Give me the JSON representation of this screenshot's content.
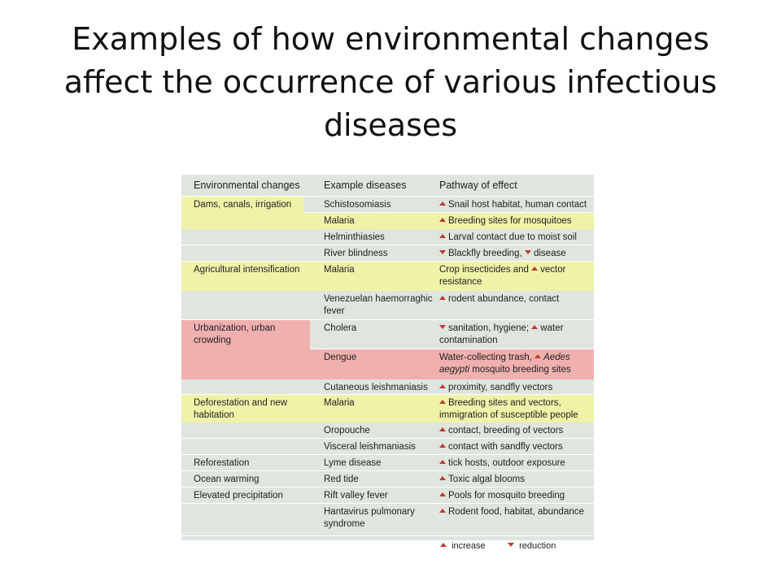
{
  "title": "Examples of how environmental changes affect the occurrence of various infectious diseases",
  "colors": {
    "table_bg": "#dfe5df",
    "yellow": "#eef3a8",
    "pink": "#f0b0ae",
    "arrow": "#c0392b"
  },
  "table": {
    "headers": [
      "Environmental changes",
      "Example diseases",
      "Pathway of effect"
    ],
    "rows": [
      {
        "env": "Dams, canals, irrigation",
        "disease": "Schistosomiasis",
        "pathway": [
          {
            "arrow": "up",
            "text": "Snail host habitat, human contact"
          }
        ]
      },
      {
        "env": "",
        "disease": "Malaria",
        "pathway": [
          {
            "arrow": "up",
            "text": "Breeding sites for mosquitoes"
          }
        ]
      },
      {
        "env": "",
        "disease": "Helminthiasies",
        "pathway": [
          {
            "arrow": "up",
            "text": "Larval contact due to moist soil"
          }
        ]
      },
      {
        "env": "",
        "disease": "River blindness",
        "pathway": [
          {
            "arrow": "down",
            "text": "Blackfly breeding, "
          },
          {
            "arrow": "down",
            "text": "disease"
          }
        ]
      },
      {
        "env": "Agricultural intensification",
        "disease": "Malaria",
        "pathway": [
          {
            "arrow": "",
            "text": "Crop insecticides and "
          },
          {
            "arrow": "up",
            "text": "vector resistance"
          }
        ]
      },
      {
        "env": "",
        "disease": "Venezuelan haemorraghic fever",
        "pathway": [
          {
            "arrow": "up",
            "text": "rodent abundance, contact"
          }
        ]
      },
      {
        "env": "Urbanization, urban crowding",
        "disease": "Cholera",
        "pathway": [
          {
            "arrow": "down",
            "text": "sanitation, hygiene; "
          },
          {
            "arrow": "up",
            "text": "water contamination"
          }
        ]
      },
      {
        "env": "",
        "disease": "Dengue",
        "pathway": [
          {
            "arrow": "",
            "text": "Water-collecting trash, "
          },
          {
            "arrow": "up",
            "text": "Aedes aegypti",
            "italic": true
          },
          {
            "arrow": "",
            "text": " mosquito breeding sites"
          }
        ]
      },
      {
        "env": "",
        "disease": "Cutaneous leishmaniasis",
        "pathway": [
          {
            "arrow": "up",
            "text": "proximity, sandfly vectors"
          }
        ]
      },
      {
        "env": "Deforestation and new habitation",
        "disease": "Malaria",
        "pathway": [
          {
            "arrow": "up",
            "text": "Breeding sites and vectors, immigration of susceptible people"
          }
        ]
      },
      {
        "env": "",
        "disease": "Oropouche",
        "pathway": [
          {
            "arrow": "up",
            "text": "contact, breeding of vectors"
          }
        ]
      },
      {
        "env": "",
        "disease": "Visceral leishmaniasis",
        "pathway": [
          {
            "arrow": "up",
            "text": "contact with sandfly vectors"
          }
        ]
      },
      {
        "env": "Reforestation",
        "disease": "Lyme disease",
        "pathway": [
          {
            "arrow": "up",
            "text": "tick hosts, outdoor exposure"
          }
        ]
      },
      {
        "env": "Ocean warming",
        "disease": "Red tide",
        "pathway": [
          {
            "arrow": "up",
            "text": "Toxic algal blooms"
          }
        ]
      },
      {
        "env": "Elevated precipitation",
        "disease": "Rift valley fever",
        "pathway": [
          {
            "arrow": "up",
            "text": "Pools for mosquito breeding"
          }
        ]
      },
      {
        "env": "",
        "disease": "Hantavirus pulmonary syndrome",
        "pathway": [
          {
            "arrow": "up",
            "text": "Rodent food, habitat, abundance"
          }
        ]
      }
    ]
  },
  "legend": {
    "increase": "increase",
    "reduction": "reduction"
  }
}
